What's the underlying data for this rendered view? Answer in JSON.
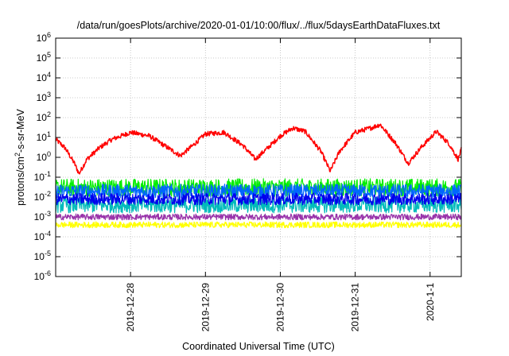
{
  "chart_data": {
    "type": "line",
    "title": "/data/run/goesPlots/archive/2020-01-01/10:00/flux/../flux/5daysEarthDataFluxes.txt",
    "xlabel": "Coordinated Universal Time (UTC)",
    "ylabel": {
      "base": "protons/cm",
      "sup": "2",
      "rest": "-s-sr-MeV"
    },
    "log_y": true,
    "grid": true,
    "xlim": [
      "2019-12-27T00:00",
      "2020-01-01T10:00"
    ],
    "ylim_exp": [
      -6,
      6
    ],
    "y_ticks": [
      {
        "base": "10",
        "exp": "-6"
      },
      {
        "base": "10",
        "exp": "-5"
      },
      {
        "base": "10",
        "exp": "-4"
      },
      {
        "base": "10",
        "exp": "-3"
      },
      {
        "base": "10",
        "exp": "-2"
      },
      {
        "base": "10",
        "exp": "-1"
      },
      {
        "base": "10",
        "exp": "0"
      },
      {
        "base": "10",
        "exp": "1"
      },
      {
        "base": "10",
        "exp": "2"
      },
      {
        "base": "10",
        "exp": "3"
      },
      {
        "base": "10",
        "exp": "4"
      },
      {
        "base": "10",
        "exp": "5"
      },
      {
        "base": "10",
        "exp": "6"
      }
    ],
    "x_ticks": [
      {
        "label": "2019-12-28",
        "t": "2019-12-28T00:00"
      },
      {
        "label": "2019-12-29",
        "t": "2019-12-29T00:00"
      },
      {
        "label": "2019-12-30",
        "t": "2019-12-30T00:00"
      },
      {
        "label": "2019-12-31",
        "t": "2019-12-31T00:00"
      },
      {
        "label": "2020-1-1",
        "t": "2020-01-01T00:00"
      }
    ],
    "series": [
      {
        "color": "#ff0000",
        "noise": 0.12,
        "points": [
          [
            "2019-12-27T00:00",
            8
          ],
          [
            "2019-12-27T03:00",
            3
          ],
          [
            "2019-12-27T06:00",
            0.5
          ],
          [
            "2019-12-27T07:30",
            0.15
          ],
          [
            "2019-12-27T10:00",
            0.8
          ],
          [
            "2019-12-27T14:00",
            3
          ],
          [
            "2019-12-27T18:00",
            8
          ],
          [
            "2019-12-28T00:00",
            18
          ],
          [
            "2019-12-28T06:00",
            12
          ],
          [
            "2019-12-28T12:00",
            3
          ],
          [
            "2019-12-28T16:00",
            1.2
          ],
          [
            "2019-12-28T20:00",
            4
          ],
          [
            "2019-12-29T00:00",
            15
          ],
          [
            "2019-12-29T06:00",
            18
          ],
          [
            "2019-12-29T12:00",
            4
          ],
          [
            "2019-12-29T16:00",
            0.8
          ],
          [
            "2019-12-29T20:00",
            3
          ],
          [
            "2019-12-30T00:00",
            12
          ],
          [
            "2019-12-30T04:00",
            30
          ],
          [
            "2019-12-30T08:00",
            20
          ],
          [
            "2019-12-30T13:00",
            2
          ],
          [
            "2019-12-30T16:00",
            0.2
          ],
          [
            "2019-12-30T19:00",
            2
          ],
          [
            "2019-12-31T00:00",
            18
          ],
          [
            "2019-12-31T05:00",
            30
          ],
          [
            "2019-12-31T08:00",
            45
          ],
          [
            "2019-12-31T13:00",
            5
          ],
          [
            "2019-12-31T17:00",
            0.5
          ],
          [
            "2019-12-31T21:00",
            3
          ],
          [
            "2020-01-01T02:00",
            20
          ],
          [
            "2020-01-01T06:00",
            5
          ],
          [
            "2020-01-01T09:00",
            0.8
          ],
          [
            "2020-01-01T10:00",
            2.5
          ]
        ]
      },
      {
        "color": "#00ee00",
        "noise": 0.45,
        "points": [
          [
            "2019-12-27T00:00",
            0.03
          ],
          [
            "2020-01-01T10:00",
            0.03
          ]
        ]
      },
      {
        "color": "#0066ff",
        "noise": 0.35,
        "points": [
          [
            "2019-12-27T00:00",
            0.02
          ],
          [
            "2020-01-01T10:00",
            0.02
          ]
        ]
      },
      {
        "color": "#00bbbb",
        "noise": 0.4,
        "points": [
          [
            "2019-12-27T00:00",
            0.004
          ],
          [
            "2020-01-01T10:00",
            0.004
          ]
        ]
      },
      {
        "color": "#0000ee",
        "noise": 0.3,
        "points": [
          [
            "2019-12-27T00:00",
            0.008
          ],
          [
            "2020-01-01T10:00",
            0.008
          ]
        ]
      },
      {
        "color": "#9933aa",
        "noise": 0.15,
        "points": [
          [
            "2019-12-27T00:00",
            0.001
          ],
          [
            "2020-01-01T10:00",
            0.001
          ]
        ]
      },
      {
        "color": "#ffff00",
        "noise": 0.15,
        "points": [
          [
            "2019-12-27T00:00",
            0.0004
          ],
          [
            "2020-01-01T10:00",
            0.0004
          ]
        ]
      }
    ]
  }
}
